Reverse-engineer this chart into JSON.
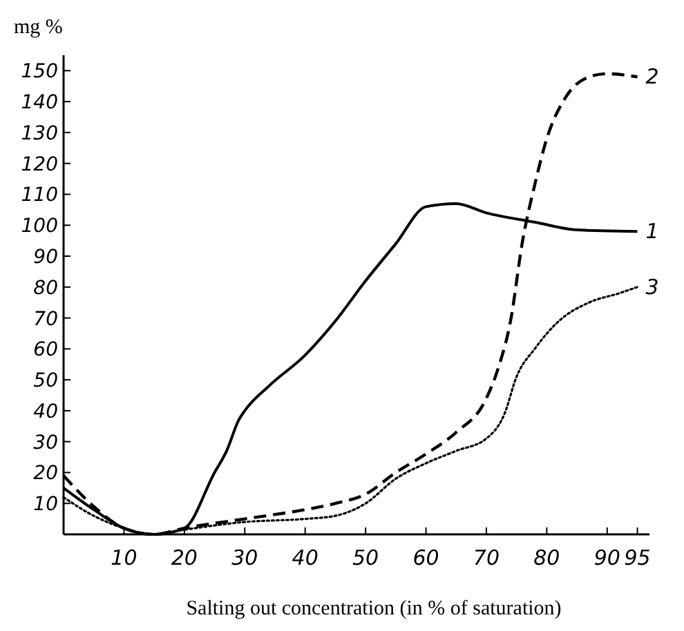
{
  "chart_data": {
    "type": "line",
    "ylabel": "mg %",
    "xlabel": "Salting out concentration (in % of saturation)",
    "xlim": [
      0,
      97
    ],
    "ylim": [
      0,
      155
    ],
    "xticks": [
      10,
      20,
      30,
      40,
      50,
      60,
      70,
      80,
      90,
      95
    ],
    "yticks": [
      10,
      20,
      30,
      40,
      50,
      60,
      70,
      80,
      90,
      100,
      110,
      120,
      130,
      140,
      150
    ],
    "grid": false,
    "series": [
      {
        "name": "1",
        "color": "#000000",
        "line_style": "solid",
        "x": [
          0,
          5,
          10,
          15,
          20,
          25,
          27,
          29,
          30,
          34,
          40,
          45,
          50,
          55,
          60,
          65,
          70,
          78,
          85,
          95
        ],
        "values": [
          15,
          8,
          2,
          0,
          2,
          20,
          27,
          37,
          40,
          48,
          58,
          69,
          82,
          94,
          106,
          107,
          104,
          101,
          98.5,
          98
        ]
      },
      {
        "name": "2",
        "color": "#000000",
        "line_style": "dashed",
        "x": [
          0,
          5,
          10,
          15,
          20,
          30,
          40,
          45,
          50,
          55,
          60,
          65,
          70,
          72,
          74,
          76,
          78,
          80,
          83,
          87,
          90,
          95
        ],
        "values": [
          19,
          9,
          2,
          0,
          2,
          5,
          8,
          10,
          13,
          20,
          26,
          33,
          44,
          54,
          69,
          95,
          113,
          128,
          141,
          148,
          149,
          148
        ]
      },
      {
        "name": "3",
        "color": "#000000",
        "line_style": "dotted",
        "x": [
          0,
          5,
          10,
          15,
          20,
          30,
          40,
          45,
          50,
          55,
          60,
          65,
          70,
          73,
          75,
          78,
          82,
          87,
          92,
          95
        ],
        "values": [
          12,
          6,
          2,
          0,
          1.5,
          4,
          5,
          6,
          10,
          18,
          23,
          27,
          31,
          39,
          51,
          60,
          69,
          75,
          78,
          80
        ]
      }
    ]
  }
}
